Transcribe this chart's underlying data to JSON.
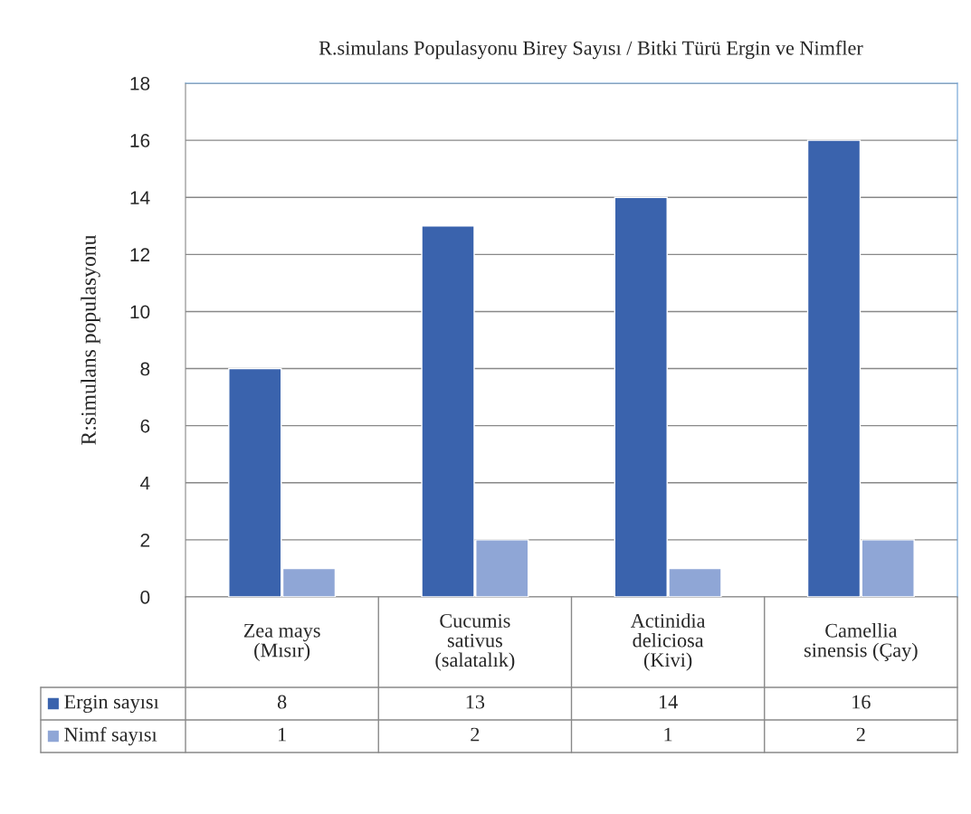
{
  "chart_data": {
    "type": "bar",
    "title": "R.simulans Populasyonu Birey Sayısı / Bitki Türü Ergin ve Nimfler",
    "ylabel": "R:simulans populasyonu",
    "categories": [
      "Zea mays\n(Mısır)",
      "Cucumis\nsativus\n(salatalık)",
      "Actinidia\ndeliciosa\n(Kivi)",
      "Camellia\nsinensis (Çay)"
    ],
    "series": [
      {
        "name": "Ergin sayısı",
        "color": "#3a63ad",
        "values": [
          8,
          13,
          14,
          16
        ]
      },
      {
        "name": "Nimf sayısı",
        "color": "#8fa6d6",
        "values": [
          1,
          2,
          1,
          2
        ]
      }
    ],
    "ylim": [
      0,
      18
    ],
    "yticks": [
      0,
      2,
      4,
      6,
      8,
      10,
      12,
      14,
      16,
      18
    ],
    "grid": "y",
    "legend": "bottom",
    "data_labels": true
  }
}
